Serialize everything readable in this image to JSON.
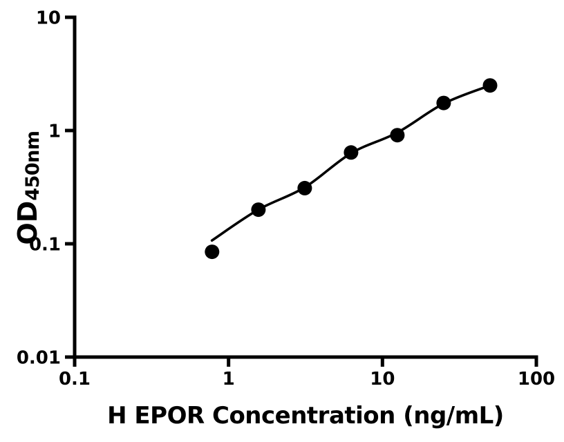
{
  "page": {
    "background": "#ffffff",
    "foreground": "#000000"
  },
  "chart_data": {
    "type": "scatter",
    "title": "",
    "xlabel": "H EPOR Concentration (ng/mL)",
    "ylabel": {
      "main": "OD",
      "subscript": "450nm"
    },
    "xscale": "log",
    "yscale": "log",
    "xlim": [
      0.1,
      100
    ],
    "ylim": [
      0.01,
      10
    ],
    "x_ticks": [
      {
        "value": 0.1,
        "label": "0.1"
      },
      {
        "value": 1,
        "label": "1"
      },
      {
        "value": 10,
        "label": "10"
      },
      {
        "value": 100,
        "label": "100"
      }
    ],
    "y_ticks": [
      {
        "value": 10,
        "label": "10"
      },
      {
        "value": 1,
        "label": "1"
      },
      {
        "value": 0.1,
        "label": "0.1"
      },
      {
        "value": 0.01,
        "label": "0.01"
      }
    ],
    "grid": false,
    "legend": false,
    "marker": "filled-circle",
    "marker_color": "#000000",
    "line_color": "#000000",
    "series": [
      {
        "points": [
          {
            "x": 0.781,
            "y": 0.085
          },
          {
            "x": 1.563,
            "y": 0.2
          },
          {
            "x": 3.125,
            "y": 0.31
          },
          {
            "x": 6.25,
            "y": 0.64
          },
          {
            "x": 12.5,
            "y": 0.91
          },
          {
            "x": 25,
            "y": 1.75
          },
          {
            "x": 50,
            "y": 2.5
          }
        ]
      }
    ],
    "fit_curve": {
      "points": [
        {
          "x": 0.78,
          "y": 0.107
        },
        {
          "x": 1.56,
          "y": 0.2
        },
        {
          "x": 3.125,
          "y": 0.315
        },
        {
          "x": 6.25,
          "y": 0.63
        },
        {
          "x": 12.5,
          "y": 0.96
        },
        {
          "x": 25,
          "y": 1.73
        },
        {
          "x": 50,
          "y": 2.5
        }
      ]
    }
  }
}
